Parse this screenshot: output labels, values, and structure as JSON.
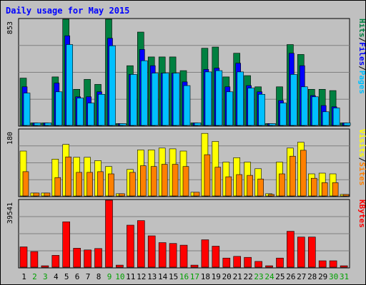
{
  "chart_data": {
    "type": "bar",
    "title": "Daily usage for May 2015",
    "categories": [
      "1",
      "2",
      "3",
      "4",
      "5",
      "6",
      "7",
      "8",
      "9",
      "10",
      "11",
      "12",
      "13",
      "14",
      "15",
      "16",
      "17",
      "18",
      "19",
      "20",
      "21",
      "22",
      "23",
      "24",
      "25",
      "26",
      "27",
      "28",
      "29",
      "30",
      "31"
    ],
    "weekend_days": [
      "2",
      "3",
      "9",
      "10",
      "16",
      "17",
      "23",
      "24",
      "30",
      "31"
    ],
    "panels": [
      {
        "id": "hits",
        "ymax_label": "853",
        "ylim": [
          0,
          853
        ],
        "series": [
          {
            "name": "Hits",
            "color": "#008040",
            "values": [
              380,
              20,
              20,
              390,
              853,
              290,
              370,
              330,
              853,
              15,
              480,
              750,
              550,
              550,
              550,
              440,
              20,
              620,
              630,
              390,
              580,
              400,
              310,
              15,
              310,
              650,
              570,
              290,
              290,
              280,
              20
            ]
          },
          {
            "name": "Files",
            "color": "#0000ff",
            "values": [
              310,
              20,
              20,
              340,
              720,
              230,
              230,
              270,
              700,
              15,
              410,
              610,
              480,
              420,
              420,
              350,
              20,
              450,
              460,
              310,
              500,
              320,
              270,
              15,
              200,
              580,
              480,
              240,
              160,
              150,
              20
            ]
          },
          {
            "name": "Pages",
            "color": "#00c0ff",
            "values": [
              260,
              20,
              20,
              270,
              650,
              220,
              180,
              250,
              640,
              15,
              410,
              520,
              420,
              420,
              420,
              320,
              20,
              430,
              440,
              270,
              430,
              300,
              250,
              15,
              180,
              410,
              310,
              230,
              110,
              140,
              20
            ]
          }
        ],
        "labels": [
          {
            "text": "Hits",
            "color": "#008040"
          },
          {
            "text": "/",
            "color": "#000000"
          },
          {
            "text": "Files",
            "color": "#0000ff"
          },
          {
            "text": "/",
            "color": "#000000"
          },
          {
            "text": "Pages",
            "color": "#00c0ff"
          }
        ]
      },
      {
        "id": "visits",
        "ymax_label": "180",
        "ylim": [
          0,
          180
        ],
        "series": [
          {
            "name": "Visits",
            "color": "#ffff00",
            "values": [
              122,
              8,
              8,
              100,
              140,
              105,
              105,
              96,
              80,
              6,
              72,
              125,
              125,
              130,
              128,
              122,
              10,
              170,
              148,
              92,
              104,
              92,
              74,
              6,
              92,
              130,
              146,
              60,
              62,
              60,
              4
            ]
          },
          {
            "name": "Sites",
            "color": "#ff8000",
            "values": [
              66,
              8,
              8,
              50,
              106,
              64,
              64,
              66,
              60,
              6,
              64,
              82,
              80,
              86,
              86,
              80,
              10,
              112,
              78,
              52,
              58,
              56,
              46,
              4,
              60,
              108,
              124,
              48,
              36,
              36,
              4
            ]
          }
        ],
        "labels": [
          {
            "text": "Visits",
            "color": "#ffff00"
          },
          {
            "text": "/",
            "color": "#000000"
          },
          {
            "text": "Sites",
            "color": "#ff8000"
          }
        ]
      },
      {
        "id": "kbytes",
        "ymax_label": "39541",
        "ylim": [
          0,
          39541
        ],
        "series": [
          {
            "name": "KBytes",
            "color": "#ff0000",
            "values": [
              12000,
              9200,
              300,
              7000,
              26800,
              11200,
              10200,
              11000,
              39541,
              1200,
              24800,
              27500,
              18500,
              14500,
              14000,
              13000,
              1200,
              16200,
              12400,
              5400,
              6400,
              5800,
              3400,
              800,
              5400,
              21200,
              17800,
              17800,
              3800,
              3800,
              800
            ]
          }
        ],
        "labels": [
          {
            "text": "KBytes",
            "color": "#ff0000"
          }
        ]
      }
    ],
    "colors": {
      "background": "#c0c0c0",
      "grid": "#808080",
      "title": "#0000ff",
      "weekday_label": "#000000",
      "weekend_label": "#00a000"
    }
  }
}
